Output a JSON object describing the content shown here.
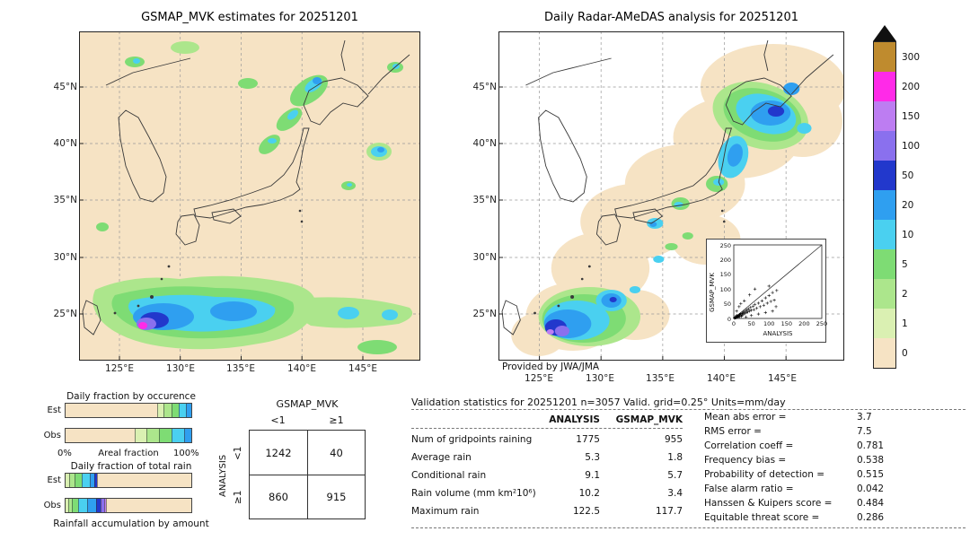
{
  "maps": {
    "left": {
      "title": "GSMAP_MVK estimates for 20251201"
    },
    "right": {
      "title": "Daily Radar-AMeDAS analysis for 20251201",
      "credit": "Provided by JWA/JMA"
    },
    "lat_labels": [
      "45°N",
      "40°N",
      "35°N",
      "30°N",
      "25°N"
    ],
    "lon_labels": [
      "125°E",
      "130°E",
      "135°E",
      "140°E",
      "145°E"
    ]
  },
  "colorbar": {
    "units": "mm/day",
    "bands": [
      {
        "label": "300",
        "color": "#bf8b2e"
      },
      {
        "label": "200",
        "color": "#ff2ae8"
      },
      {
        "label": "150",
        "color": "#bd7df2"
      },
      {
        "label": "100",
        "color": "#8a70ee"
      },
      {
        "label": "50",
        "color": "#2238cc"
      },
      {
        "label": "20",
        "color": "#2f9ff0"
      },
      {
        "label": "10",
        "color": "#4ad0f0"
      },
      {
        "label": "5",
        "color": "#7edc74"
      },
      {
        "label": "2",
        "color": "#ace68c"
      },
      {
        "label": "1",
        "color": "#daf0b2"
      },
      {
        "label": "0",
        "color": "#f6e3c4"
      }
    ]
  },
  "bars": {
    "occurrence": {
      "title": "Daily fraction by occurence",
      "row_labels": [
        "Est",
        "Obs"
      ],
      "axis_left": "0%",
      "axis_center": "Areal fraction",
      "axis_right": "100%",
      "est": [
        {
          "color": "#f6e3c4",
          "pct": 73
        },
        {
          "color": "#daf0b2",
          "pct": 5
        },
        {
          "color": "#ace68c",
          "pct": 6
        },
        {
          "color": "#7edc74",
          "pct": 6
        },
        {
          "color": "#4ad0f0",
          "pct": 6
        },
        {
          "color": "#2f9ff0",
          "pct": 4
        }
      ],
      "obs": [
        {
          "color": "#f6e3c4",
          "pct": 55
        },
        {
          "color": "#daf0b2",
          "pct": 9
        },
        {
          "color": "#ace68c",
          "pct": 10
        },
        {
          "color": "#7edc74",
          "pct": 10
        },
        {
          "color": "#4ad0f0",
          "pct": 10
        },
        {
          "color": "#2f9ff0",
          "pct": 6
        }
      ]
    },
    "totalrain": {
      "title": "Daily fraction of total rain",
      "row_labels": [
        "Est",
        "Obs"
      ],
      "caption": "Rainfall accumulation by amount",
      "est": [
        {
          "color": "#daf0b2",
          "pct": 3
        },
        {
          "color": "#ace68c",
          "pct": 4
        },
        {
          "color": "#7edc74",
          "pct": 6
        },
        {
          "color": "#4ad0f0",
          "pct": 6
        },
        {
          "color": "#2f9ff0",
          "pct": 4
        },
        {
          "color": "#2238cc",
          "pct": 2
        },
        {
          "color": "#f6e3c4",
          "pct": 75
        }
      ],
      "obs": [
        {
          "color": "#daf0b2",
          "pct": 2
        },
        {
          "color": "#ace68c",
          "pct": 3
        },
        {
          "color": "#7edc74",
          "pct": 5
        },
        {
          "color": "#4ad0f0",
          "pct": 7
        },
        {
          "color": "#2f9ff0",
          "pct": 7
        },
        {
          "color": "#2238cc",
          "pct": 4
        },
        {
          "color": "#8a70ee",
          "pct": 3
        },
        {
          "color": "#bd7df2",
          "pct": 1
        },
        {
          "color": "#f6e3c4",
          "pct": 68
        }
      ]
    }
  },
  "contingency": {
    "col_group": "GSMAP_MVK",
    "row_group": "ANALYSIS",
    "col_labels": [
      "<1",
      "≥1"
    ],
    "row_labels": [
      "<1",
      "≥1"
    ],
    "values": [
      [
        "1242",
        "40"
      ],
      [
        "860",
        "915"
      ]
    ]
  },
  "stats": {
    "title": "Validation statistics for 20251201  n=3057 Valid. grid=0.25° Units=mm/day",
    "col_headers": [
      "ANALYSIS",
      "GSMAP_MVK"
    ],
    "rows": [
      {
        "label": "Num of gridpoints raining",
        "analysis": "1775",
        "gsmap": "955"
      },
      {
        "label": "Average rain",
        "analysis": "5.3",
        "gsmap": "1.8"
      },
      {
        "label": "Conditional rain",
        "analysis": "9.1",
        "gsmap": "5.7"
      },
      {
        "label": "Rain volume (mm km²10⁶)",
        "analysis": "10.2",
        "gsmap": "3.4"
      },
      {
        "label": "Maximum rain",
        "analysis": "122.5",
        "gsmap": "117.7"
      }
    ],
    "summary": [
      {
        "label": "Mean abs error =",
        "value": "3.7"
      },
      {
        "label": "RMS error =",
        "value": "7.5"
      },
      {
        "label": "Correlation coeff =",
        "value": "0.781"
      },
      {
        "label": "Frequency bias =",
        "value": "0.538"
      },
      {
        "label": "Probability of detection =",
        "value": "0.515"
      },
      {
        "label": "False alarm ratio =",
        "value": "0.042"
      },
      {
        "label": "Hanssen & Kuipers score =",
        "value": "0.484"
      },
      {
        "label": "Equitable threat score =",
        "value": "0.286"
      }
    ]
  },
  "inset": {
    "xlabel": "ANALYSIS",
    "ylabel": "GSMAP_MVK",
    "ticks": [
      "0",
      "50",
      "100",
      "150",
      "200",
      "250"
    ]
  },
  "chart_data": [
    {
      "type": "heatmap",
      "title": "GSMAP_MVK estimates for 20251201",
      "units": "mm/day",
      "x_ticks": [
        "125°E",
        "130°E",
        "135°E",
        "140°E",
        "145°E"
      ],
      "y_ticks": [
        "45°N",
        "40°N",
        "35°N",
        "30°N",
        "25°N"
      ],
      "colorbar_levels": [
        0,
        1,
        2,
        5,
        10,
        20,
        50,
        100,
        150,
        200,
        300
      ]
    },
    {
      "type": "heatmap",
      "title": "Daily Radar-AMeDAS analysis for 20251201",
      "units": "mm/day",
      "x_ticks": [
        "125°E",
        "130°E",
        "135°E",
        "140°E",
        "145°E"
      ],
      "y_ticks": [
        "45°N",
        "40°N",
        "35°N",
        "30°N",
        "25°N"
      ],
      "colorbar_levels": [
        0,
        1,
        2,
        5,
        10,
        20,
        50,
        100,
        150,
        200,
        300
      ]
    },
    {
      "type": "bar",
      "title": "Daily fraction by occurence",
      "stacked": true,
      "categories": [
        "Est",
        "Obs"
      ],
      "xlabel": "Areal fraction",
      "xlim": [
        "0%",
        "100%"
      ],
      "series": [
        {
          "name": "0-1",
          "values": [
            73,
            55
          ]
        },
        {
          "name": "1-2",
          "values": [
            5,
            9
          ]
        },
        {
          "name": "2-5",
          "values": [
            6,
            10
          ]
        },
        {
          "name": "5-10",
          "values": [
            6,
            10
          ]
        },
        {
          "name": "10-20",
          "values": [
            6,
            10
          ]
        },
        {
          "name": "20-50",
          "values": [
            4,
            6
          ]
        }
      ]
    },
    {
      "type": "bar",
      "title": "Daily fraction of total rain",
      "stacked": true,
      "categories": [
        "Est",
        "Obs"
      ],
      "xlabel": "Rainfall accumulation by amount",
      "series": [
        {
          "name": "1-2",
          "values": [
            3,
            2
          ]
        },
        {
          "name": "2-5",
          "values": [
            4,
            3
          ]
        },
        {
          "name": "5-10",
          "values": [
            6,
            5
          ]
        },
        {
          "name": "10-20",
          "values": [
            6,
            7
          ]
        },
        {
          "name": "20-50",
          "values": [
            4,
            7
          ]
        },
        {
          "name": "50-100",
          "values": [
            2,
            4
          ]
        },
        {
          "name": "100-150",
          "values": [
            0,
            3
          ]
        },
        {
          "name": "150-200",
          "values": [
            0,
            1
          ]
        },
        {
          "name": "0-1",
          "values": [
            75,
            68
          ]
        }
      ]
    },
    {
      "type": "table",
      "title": "Contingency table",
      "columns": [
        "GSMAP_MVK <1",
        "GSMAP_MVK ≥1"
      ],
      "rows": [
        "ANALYSIS <1",
        "ANALYSIS ≥1"
      ],
      "values": [
        [
          1242,
          40
        ],
        [
          860,
          915
        ]
      ]
    },
    {
      "type": "table",
      "title": "Validation statistics for 20251201  n=3057 Valid. grid=0.25° Units=mm/day",
      "columns": [
        "ANALYSIS",
        "GSMAP_MVK"
      ],
      "values": [
        [
          "Num of gridpoints raining",
          1775,
          955
        ],
        [
          "Average rain",
          5.3,
          1.8
        ],
        [
          "Conditional rain",
          9.1,
          5.7
        ],
        [
          "Rain volume (mm km²10⁶)",
          10.2,
          3.4
        ],
        [
          "Maximum rain",
          122.5,
          117.7
        ]
      ],
      "scores": {
        "Mean abs error": 3.7,
        "RMS error": 7.5,
        "Correlation coeff": 0.781,
        "Frequency bias": 0.538,
        "Probability of detection": 0.515,
        "False alarm ratio": 0.042,
        "Hanssen & Kuipers score": 0.484,
        "Equitable threat score": 0.286
      }
    },
    {
      "type": "scatter",
      "title": "GSMAP_MVK vs ANALYSIS",
      "xlabel": "ANALYSIS",
      "ylabel": "GSMAP_MVK",
      "xlim": [
        0,
        250
      ],
      "ylim": [
        0,
        250
      ],
      "points": [
        [
          2,
          1
        ],
        [
          3,
          2
        ],
        [
          4,
          3
        ],
        [
          5,
          2
        ],
        [
          5,
          6
        ],
        [
          6,
          4
        ],
        [
          7,
          3
        ],
        [
          8,
          6
        ],
        [
          8,
          10
        ],
        [
          9,
          5
        ],
        [
          10,
          8
        ],
        [
          11,
          4
        ],
        [
          12,
          9
        ],
        [
          13,
          6
        ],
        [
          14,
          11
        ],
        [
          15,
          8
        ],
        [
          16,
          13
        ],
        [
          17,
          6
        ],
        [
          18,
          14
        ],
        [
          20,
          16
        ],
        [
          21,
          11
        ],
        [
          22,
          7
        ],
        [
          24,
          18
        ],
        [
          25,
          12
        ],
        [
          26,
          21
        ],
        [
          28,
          15
        ],
        [
          30,
          24
        ],
        [
          32,
          18
        ],
        [
          34,
          27
        ],
        [
          36,
          20
        ],
        [
          38,
          30
        ],
        [
          40,
          22
        ],
        [
          42,
          33
        ],
        [
          45,
          25
        ],
        [
          48,
          38
        ],
        [
          50,
          28
        ],
        [
          55,
          42
        ],
        [
          58,
          30
        ],
        [
          60,
          48
        ],
        [
          65,
          35
        ],
        [
          70,
          52
        ],
        [
          75,
          40
        ],
        [
          80,
          60
        ],
        [
          85,
          45
        ],
        [
          90,
          70
        ],
        [
          95,
          52
        ],
        [
          100,
          78
        ],
        [
          105,
          58
        ],
        [
          110,
          88
        ],
        [
          115,
          62
        ],
        [
          122,
          95
        ],
        [
          100,
          110
        ],
        [
          60,
          100
        ],
        [
          30,
          60
        ],
        [
          15,
          40
        ],
        [
          8,
          25
        ],
        [
          45,
          80
        ],
        [
          20,
          50
        ],
        [
          35,
          5
        ],
        [
          50,
          10
        ],
        [
          70,
          15
        ],
        [
          90,
          20
        ],
        [
          110,
          25
        ],
        [
          120,
          40
        ]
      ]
    }
  ]
}
